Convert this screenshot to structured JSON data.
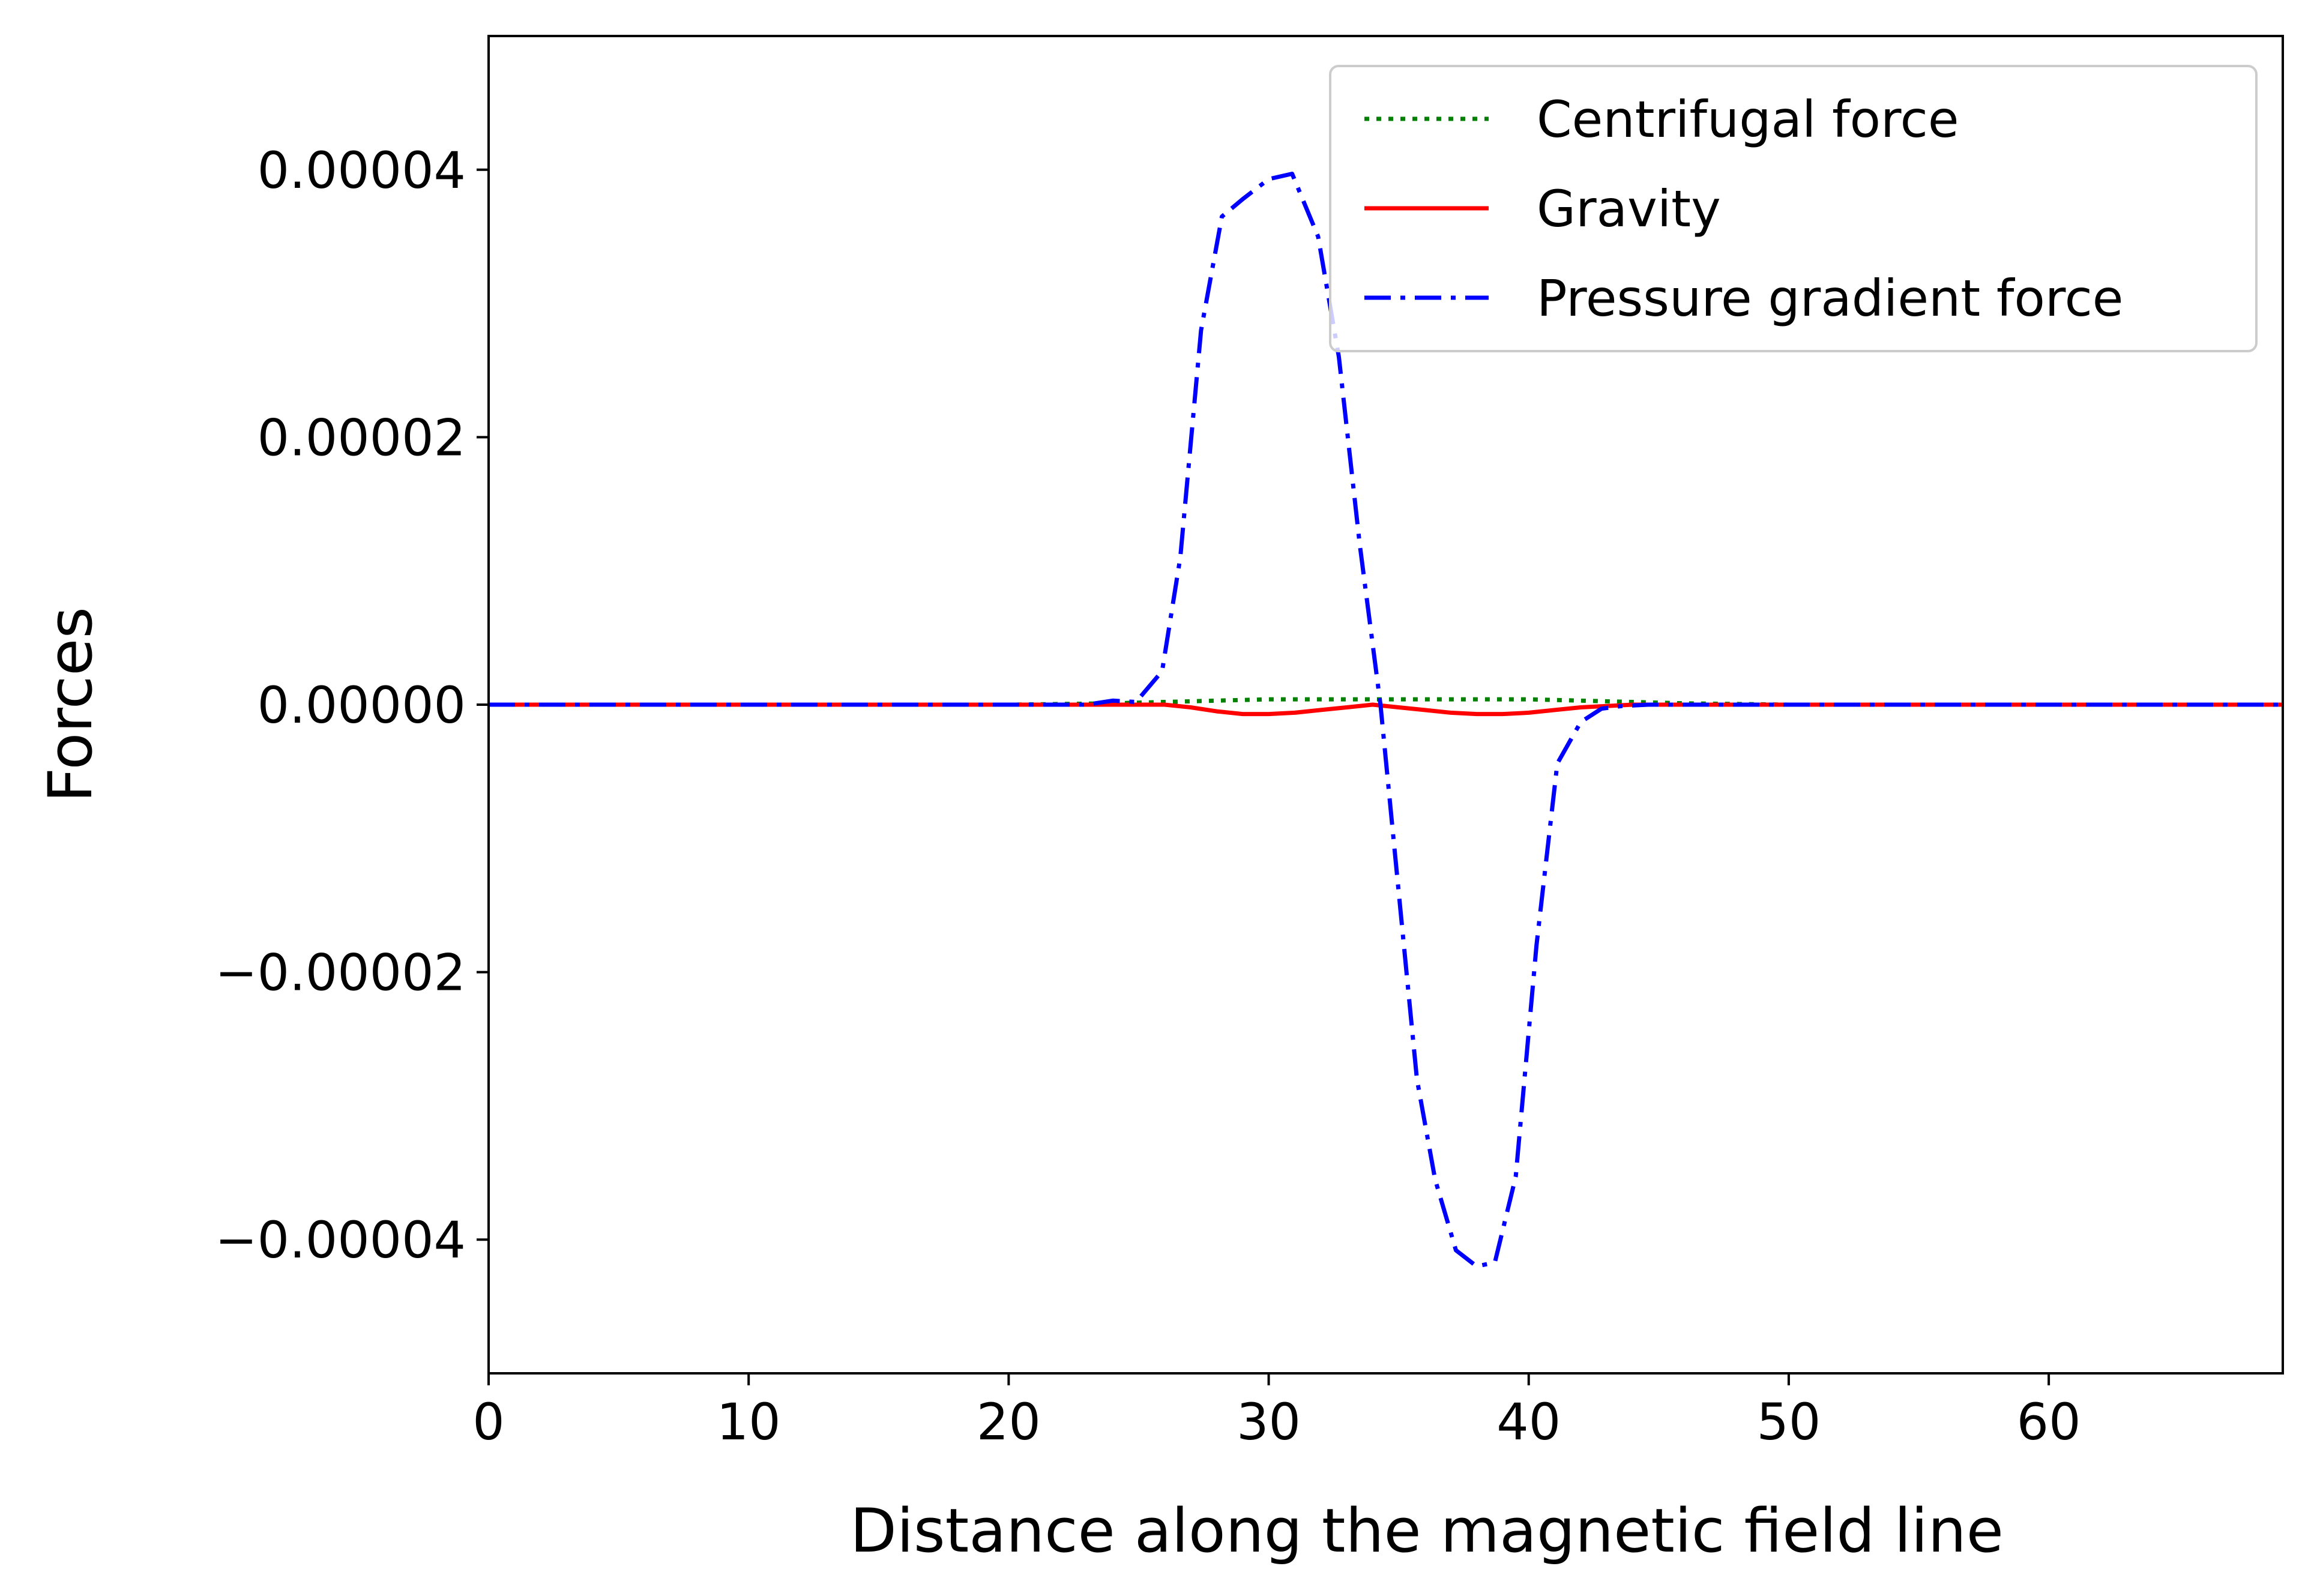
{
  "chart_data": {
    "type": "line",
    "title": "",
    "xlabel": "Distance along the magnetic field line",
    "ylabel": "Forces",
    "xlim": [
      0,
      69
    ],
    "ylim": [
      -5e-05,
      5e-05
    ],
    "grid": false,
    "legend_position": "top-right",
    "x_ticks": [
      {
        "value": 0,
        "label": "0"
      },
      {
        "value": 10,
        "label": "10"
      },
      {
        "value": 20,
        "label": "20"
      },
      {
        "value": 30,
        "label": "30"
      },
      {
        "value": 40,
        "label": "40"
      },
      {
        "value": 50,
        "label": "50"
      },
      {
        "value": 60,
        "label": "60"
      }
    ],
    "y_ticks": [
      {
        "value": 4e-05,
        "label": "0.00004"
      },
      {
        "value": 2e-05,
        "label": "0.00002"
      },
      {
        "value": 0,
        "label": "0.00000"
      },
      {
        "value": -2e-05,
        "label": "−0.00002"
      },
      {
        "value": -4e-05,
        "label": "−0.00004"
      }
    ],
    "series": [
      {
        "name": "Centrifugal force",
        "color": "#008000",
        "style": "dotted",
        "x": [
          0,
          20,
          24,
          26,
          28,
          30,
          32,
          34,
          36,
          38,
          40,
          42,
          44,
          46,
          50,
          60,
          69
        ],
        "values": [
          0,
          0,
          1e-07,
          2e-07,
          3e-07,
          4e-07,
          4e-07,
          4e-07,
          4e-07,
          4e-07,
          4e-07,
          3e-07,
          2e-07,
          1e-07,
          0,
          0,
          0
        ]
      },
      {
        "name": "Gravity",
        "color": "#ff0000",
        "style": "solid",
        "x": [
          0,
          20,
          24,
          26,
          27,
          28,
          29,
          30,
          31,
          32,
          33,
          34,
          35,
          36,
          37,
          38,
          39,
          40,
          41,
          42,
          43,
          44,
          46,
          50,
          60,
          69
        ],
        "values": [
          0,
          0,
          0,
          0,
          -2e-07,
          -5e-07,
          -7e-07,
          -7e-07,
          -6e-07,
          -4e-07,
          -2e-07,
          0,
          -2e-07,
          -4e-07,
          -6e-07,
          -7e-07,
          -7e-07,
          -6e-07,
          -4e-07,
          -2e-07,
          -1e-07,
          0,
          0,
          0,
          0,
          0
        ]
      },
      {
        "name": "Pressure gradient force",
        "color": "#0000ff",
        "style": "dashdot",
        "x": [
          0,
          20,
          23,
          24,
          24.9,
          25.9,
          26.6,
          27.4,
          28.2,
          29,
          30,
          30.9,
          31.9,
          32.7,
          33.5,
          34.3,
          34.9,
          35.7,
          36.4,
          37.2,
          38,
          38.7,
          39.5,
          40.3,
          41.1,
          42,
          42.8,
          43.6,
          44.6,
          46,
          50,
          60,
          69
        ],
        "values": [
          0,
          0,
          0,
          3e-07,
          2e-07,
          2.5e-06,
          1.1e-05,
          2.8e-05,
          3.65e-05,
          3.78e-05,
          3.93e-05,
          3.97e-05,
          3.5e-05,
          2.6e-05,
          1.2e-05,
          0,
          -1.2e-05,
          -2.8e-05,
          -3.55e-05,
          -4.08e-05,
          -4.2e-05,
          -4.17e-05,
          -3.53e-05,
          -1.8e-05,
          -4.4e-06,
          -1.3e-06,
          -3e-07,
          -1e-07,
          0,
          0,
          0,
          0,
          0
        ]
      }
    ]
  }
}
